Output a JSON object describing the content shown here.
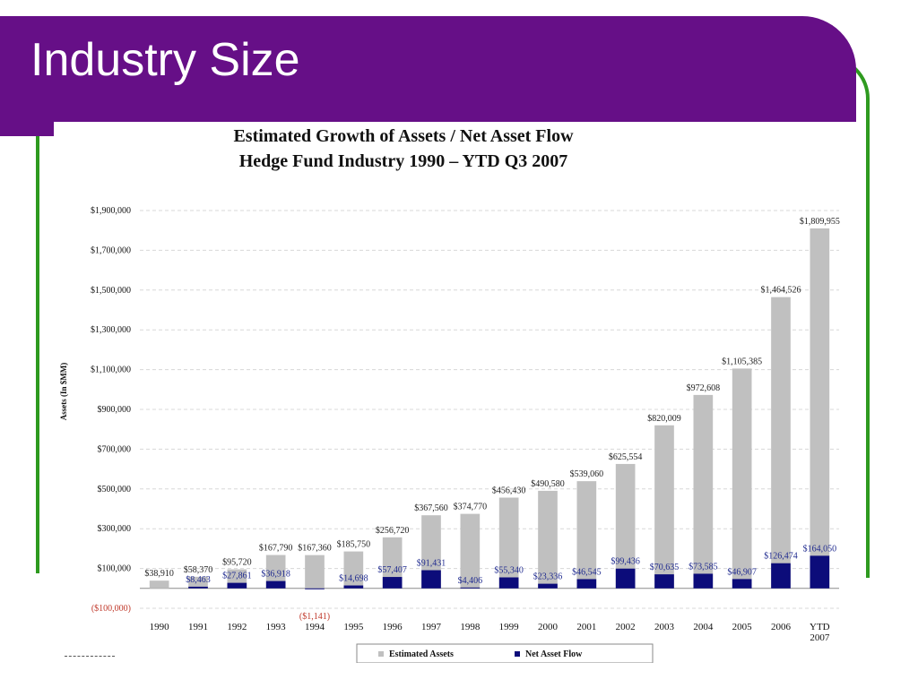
{
  "slide": {
    "title": "Industry Size"
  },
  "chart_data": {
    "type": "bar",
    "title": "Estimated Growth of Assets / Net Asset Flow",
    "subtitle": "Hedge Fund Industry 1990 – YTD Q3 2007",
    "ylabel": "Assets (In $MM)",
    "xlabel": "",
    "ylim": [
      -100000,
      1900000
    ],
    "yticks": [
      -100000,
      100000,
      300000,
      500000,
      700000,
      900000,
      1100000,
      1300000,
      1500000,
      1700000,
      1900000
    ],
    "ytick_labels": [
      "($100,000)",
      "$100,000",
      "$300,000",
      "$500,000",
      "$700,000",
      "$900,000",
      "$1,100,000",
      "$1,300,000",
      "$1,500,000",
      "$1,700,000",
      "$1,900,000"
    ],
    "grid": true,
    "legend_position": "bottom",
    "categories": [
      "1990",
      "1991",
      "1992",
      "1993",
      "1994",
      "1995",
      "1996",
      "1997",
      "1998",
      "1999",
      "2000",
      "2001",
      "2002",
      "2003",
      "2004",
      "2005",
      "2006",
      "YTD 2007"
    ],
    "series": [
      {
        "name": "Estimated Assets",
        "color": "#c0c0c0",
        "label_color": "#222222",
        "values": [
          38910,
          58370,
          95720,
          167790,
          167360,
          185750,
          256720,
          367560,
          374770,
          456430,
          490580,
          539060,
          625554,
          820009,
          972608,
          1105385,
          1464526,
          1809955
        ],
        "labels": [
          "$38,910",
          "$58,370",
          "$95,720",
          "$167,790",
          "$167,360",
          "$185,750",
          "$256,720",
          "$367,560",
          "$374,770",
          "$456,430",
          "$490,580",
          "$539,060",
          "$625,554",
          "$820,009",
          "$972,608",
          "$1,105,385",
          "$1,464,526",
          "$1,809,955"
        ]
      },
      {
        "name": "Net Asset Flow",
        "color": "#0c0c7a",
        "label_color": "#1f2a8f",
        "negative_label_color": "#c0392b",
        "values": [
          null,
          8463,
          27861,
          36918,
          -1141,
          14698,
          57407,
          91431,
          4406,
          55340,
          23336,
          46545,
          99436,
          70635,
          73585,
          46907,
          126474,
          164050
        ],
        "labels": [
          "",
          "$8,463",
          "$27,861",
          "$36,918",
          "($1,141)",
          "$14,698",
          "$57,407",
          "$91,431",
          "$4,406",
          "$55,340",
          "$23,336",
          "$46,545",
          "$99,436",
          "$70,635",
          "$73,585",
          "$46,907",
          "$126,474",
          "$164,050"
        ]
      }
    ]
  }
}
